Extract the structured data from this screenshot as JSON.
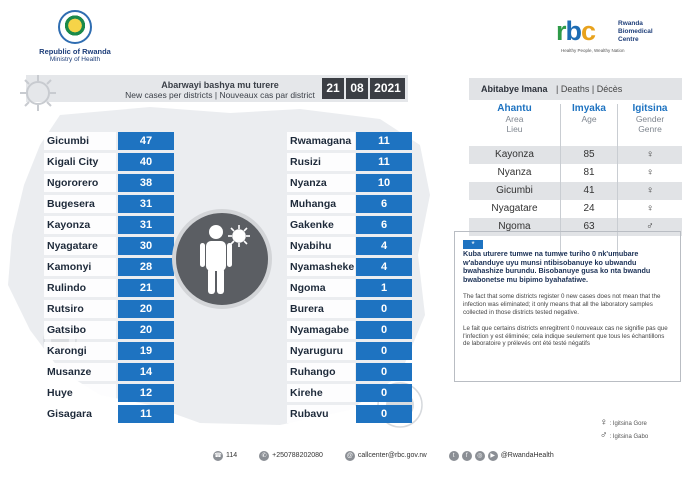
{
  "header": {
    "gov_line1": "Republic of Rwanda",
    "gov_line2": "Ministry of Health",
    "rbc_logo": "rbc",
    "rbc_name": [
      "Rwanda",
      "Biomedical",
      "Centre"
    ],
    "rbc_tagline": "Healthy People, Wealthy Nation"
  },
  "banner": {
    "title_rw": "Abarwayi bashya mu turere",
    "title_en_fr": "New cases per districts  |  Nouveaux cas par district",
    "date": [
      "21",
      "08",
      "2021"
    ]
  },
  "districts_left": [
    {
      "name": "Gicumbi",
      "value": "47"
    },
    {
      "name": "Kigali City",
      "value": "40"
    },
    {
      "name": "Ngororero",
      "value": "38"
    },
    {
      "name": "Bugesera",
      "value": "31"
    },
    {
      "name": "Kayonza",
      "value": "31"
    },
    {
      "name": "Nyagatare",
      "value": "30"
    },
    {
      "name": "Kamonyi",
      "value": "28"
    },
    {
      "name": "Rulindo",
      "value": "21"
    },
    {
      "name": "Rutsiro",
      "value": "20"
    },
    {
      "name": "Gatsibo",
      "value": "20"
    },
    {
      "name": "Karongi",
      "value": "19"
    },
    {
      "name": "Musanze",
      "value": "14"
    },
    {
      "name": "Huye",
      "value": "12"
    },
    {
      "name": "Gisagara",
      "value": "11"
    }
  ],
  "districts_right": [
    {
      "name": "Rwamagana",
      "value": "11"
    },
    {
      "name": "Rusizi",
      "value": "11"
    },
    {
      "name": "Nyanza",
      "value": "10"
    },
    {
      "name": "Muhanga",
      "value": "6"
    },
    {
      "name": "Gakenke",
      "value": "6"
    },
    {
      "name": "Nyabihu",
      "value": "4"
    },
    {
      "name": "Nyamasheke",
      "value": "4"
    },
    {
      "name": "Ngoma",
      "value": "1"
    },
    {
      "name": "Burera",
      "value": "0"
    },
    {
      "name": "Nyamagabe",
      "value": "0"
    },
    {
      "name": "Nyaruguru",
      "value": "0"
    },
    {
      "name": "Ruhango",
      "value": "0"
    },
    {
      "name": "Kirehe",
      "value": "0"
    },
    {
      "name": "Rubavu",
      "value": "0"
    }
  ],
  "deaths": {
    "title_rw": "Abitabye Imana",
    "title_en_fr": "|  Deaths  |  Décès",
    "columns": [
      {
        "key": "Ahantu",
        "sub1": "Area",
        "sub2": "Lieu"
      },
      {
        "key": "Imyaka",
        "sub1": "Age",
        "sub2": ""
      },
      {
        "key": "Igitsina",
        "sub1": "Gender",
        "sub2": "Genre"
      }
    ],
    "rows": [
      {
        "area": "Kayonza",
        "age": "85",
        "gender_symbol": "♀",
        "gender": "female"
      },
      {
        "area": "Nyanza",
        "age": "81",
        "gender_symbol": "♀",
        "gender": "female"
      },
      {
        "area": "Gicumbi",
        "age": "41",
        "gender_symbol": "♀",
        "gender": "female"
      },
      {
        "area": "Nyagatare",
        "age": "24",
        "gender_symbol": "♀",
        "gender": "female"
      },
      {
        "area": "Ngoma",
        "age": "63",
        "gender_symbol": "♂",
        "gender": "male"
      }
    ]
  },
  "note": {
    "badge": "*",
    "rw": "Kuba uturere tumwe na tumwe turiho 0 nk'umubare w'abanduye uyu munsi ntibisobanuye ko ubwandu bwahashize burundu. Bisobanuye gusa ko nta bwandu bwabonetse mu bipimo byahafatiwe.",
    "en": "The fact that some districts register 0 new cases does not mean that the infection was eliminated; it only means that all the laboratory samples collected in those districts tested negative.",
    "fr": "Le fait que certains districts enregitrent 0 nouveaux cas ne signifie pas que l'infection y est éliminée; cela indique seulement que tous les échantillons de laboratoire y prélevés ont été testé négatifs"
  },
  "legend": [
    {
      "symbol": "♀",
      "label": ": Igitsina Gore"
    },
    {
      "symbol": "♂",
      "label": ": Igitsina Gabo"
    }
  ],
  "footer": {
    "hotline": "114",
    "phone": "+250788202080",
    "email": "callcenter@rbc.gov.rw",
    "social": "@RwandaHealth",
    "social_icons": [
      "twitter-icon",
      "facebook-icon",
      "instagram-icon",
      "youtube-icon"
    ]
  },
  "colors": {
    "accent_blue": "#1e73c1",
    "dark_gray": "#3b3e44",
    "panel_gray": "#e1e3e6"
  }
}
